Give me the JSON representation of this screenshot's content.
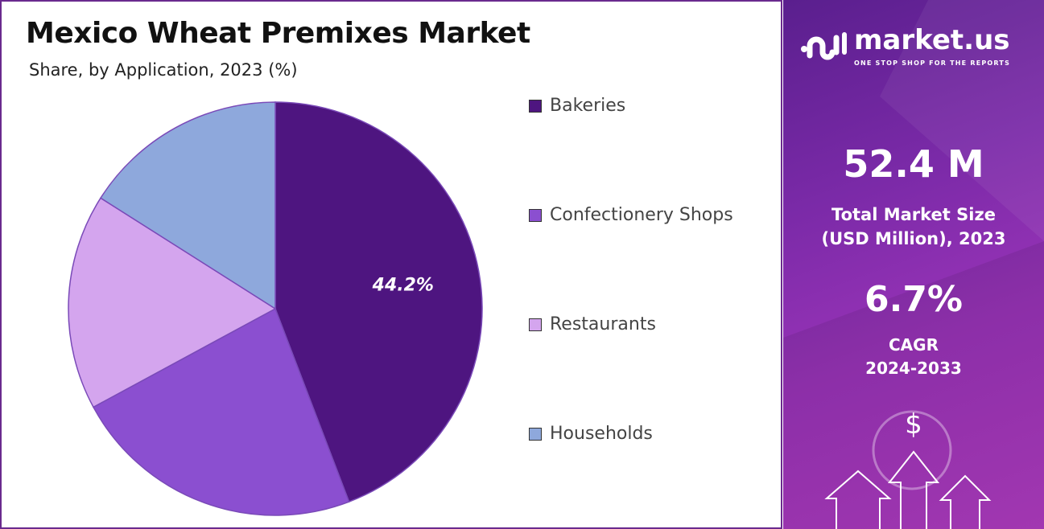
{
  "chart_data": {
    "type": "pie",
    "title": "Mexico Wheat Premixes Market",
    "subtitle": "Share, by Application, 2023 (%)",
    "categories": [
      "Bakeries",
      "Confectionery Shops",
      "Restaurants",
      "Households"
    ],
    "values": [
      44.2,
      22.9,
      16.9,
      16.0
    ],
    "colors": [
      "#4e1580",
      "#8b4fd0",
      "#d4a5ee",
      "#8ea8dc"
    ],
    "data_labels": [
      "44.2%",
      null,
      null,
      null
    ],
    "start_angle": "top, clockwise",
    "legend_position": "right"
  },
  "side_panel": {
    "brand": "market.us",
    "tagline": "ONE STOP SHOP FOR THE REPORTS",
    "market_size": "52.4 M",
    "market_size_label_1": "Total Market Size",
    "market_size_label_2": "(USD Million), 2023",
    "cagr": "6.7%",
    "cagr_label": "CAGR",
    "cagr_period": "2024-2033",
    "currency_symbol": "$"
  }
}
